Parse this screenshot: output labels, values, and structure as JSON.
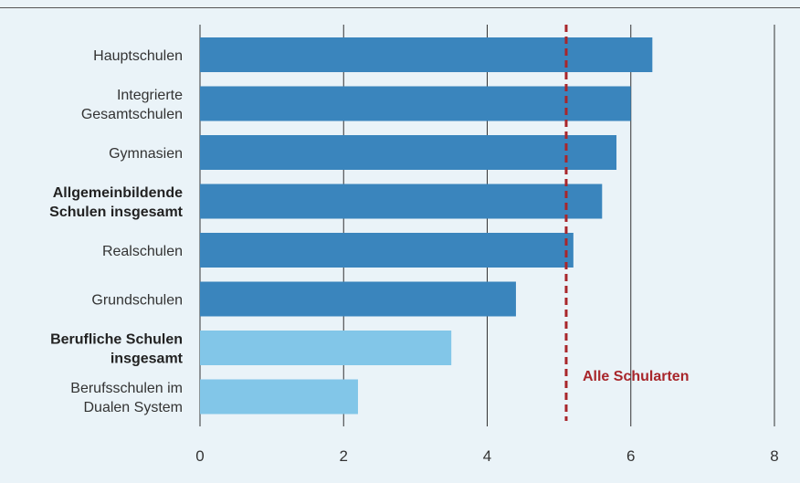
{
  "chart_data": {
    "type": "bar",
    "orientation": "horizontal",
    "categories": [
      {
        "lines": [
          "Hauptschulen"
        ],
        "bold": false
      },
      {
        "lines": [
          "Integrierte",
          "Gesamtschulen"
        ],
        "bold": false
      },
      {
        "lines": [
          "Gymnasien"
        ],
        "bold": false
      },
      {
        "lines": [
          "Allgemeinbildende",
          "Schulen insgesamt"
        ],
        "bold": true
      },
      {
        "lines": [
          "Realschulen"
        ],
        "bold": false
      },
      {
        "lines": [
          "Grundschulen"
        ],
        "bold": false
      },
      {
        "lines": [
          "Berufliche Schulen",
          "insgesamt"
        ],
        "bold": true
      },
      {
        "lines": [
          "Berufsschulen im",
          "Dualen System"
        ],
        "bold": false
      }
    ],
    "values": [
      6.3,
      6.0,
      5.8,
      5.6,
      5.2,
      4.4,
      3.5,
      2.2
    ],
    "bar_colors": [
      "#3a85bd",
      "#3a85bd",
      "#3a85bd",
      "#3a85bd",
      "#3a85bd",
      "#3a85bd",
      "#82c6e8",
      "#82c6e8"
    ],
    "xlim": [
      0,
      8
    ],
    "xticks": [
      0,
      2,
      4,
      6,
      8
    ],
    "grid": "vertical",
    "reference_line": {
      "value": 5.1,
      "label": "Alle Schularten",
      "color": "#a8262b"
    }
  }
}
